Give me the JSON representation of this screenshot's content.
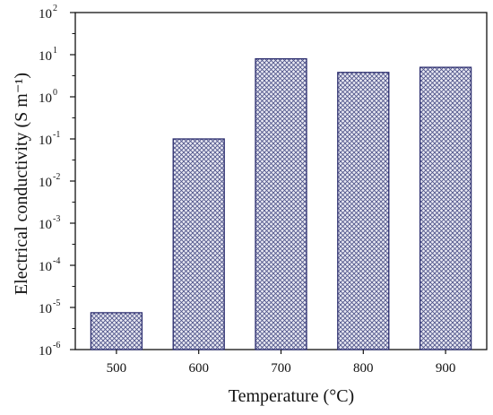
{
  "chart_data": {
    "type": "bar",
    "categories": [
      "500",
      "600",
      "700",
      "800",
      "900"
    ],
    "values": [
      7.5e-06,
      0.1,
      8,
      3.8,
      5
    ],
    "xlabel": "Temperature (°C)",
    "ylabel": "Electrical conductivity (S m⁻¹)",
    "yscale": "log",
    "ylim": [
      1e-06,
      100
    ],
    "yticks": [
      {
        "base": "10",
        "exp": "-6"
      },
      {
        "base": "10",
        "exp": "-5"
      },
      {
        "base": "10",
        "exp": "-4"
      },
      {
        "base": "10",
        "exp": "-3"
      },
      {
        "base": "10",
        "exp": "-2"
      },
      {
        "base": "10",
        "exp": "-1"
      },
      {
        "base": "10",
        "exp": "0"
      },
      {
        "base": "10",
        "exp": "1"
      },
      {
        "base": "10",
        "exp": "2"
      }
    ],
    "grid": false,
    "legend": "none",
    "bar_fill": "crosshatch",
    "colors": {
      "bar_stroke": "#2b2d6e",
      "hatch": "#4a4f86",
      "bar_bg": "#e9e9f3",
      "axis": "#111111"
    }
  }
}
